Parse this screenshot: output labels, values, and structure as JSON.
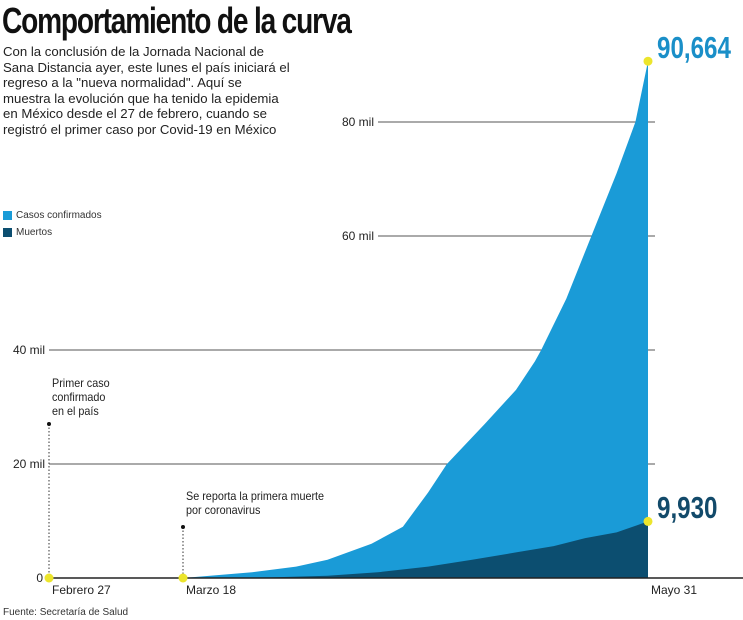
{
  "title": "Comportamiento de la curva",
  "intro": "Con la conclusión de la Jornada Nacional de Sana Distancia ayer, este lunes el país iniciará el regreso a la \"nueva normalidad\".  Aquí se muestra la evolución que ha tenido la epidemia en México desde el 27 de febrero, cuando se registró el primer caso por Covid-19 en México",
  "source": "Fuente: Secretaría de Salud",
  "colors": {
    "cases": "#1a9bd7",
    "deaths": "#0c4e70",
    "marker": "#ece52c",
    "cases_label": "#1a8fc8",
    "deaths_label": "#124a6a"
  },
  "chart_data": {
    "type": "area",
    "title": "Comportamiento de la curva",
    "xlabel": "",
    "ylabel": "",
    "ylim": [
      0,
      90664
    ],
    "grid": true,
    "legend": "left",
    "y_ticks": [
      {
        "value": 0,
        "label": "0"
      },
      {
        "value": 20000,
        "label": "20 mil"
      },
      {
        "value": 40000,
        "label": "40 mil"
      },
      {
        "value": 60000,
        "label": "60 mil"
      },
      {
        "value": 80000,
        "label": "80 mil"
      }
    ],
    "x_ticks": [
      {
        "date": "02-27",
        "label": "Febrero 27"
      },
      {
        "date": "03-18",
        "label": "Marzo 18"
      },
      {
        "date": "05-31",
        "label": "Mayo 31"
      }
    ],
    "series": [
      {
        "name": "Casos confirmados",
        "points": [
          [
            "03-18",
            0
          ],
          [
            "03-29",
            1000
          ],
          [
            "04-05",
            2000
          ],
          [
            "04-10",
            3200
          ],
          [
            "04-17",
            6000
          ],
          [
            "04-22",
            9000
          ],
          [
            "04-26",
            15000
          ],
          [
            "04-29",
            20000
          ],
          [
            "05-05",
            27000
          ],
          [
            "05-10",
            33000
          ],
          [
            "05-13",
            38000
          ],
          [
            "05-14",
            40000
          ],
          [
            "05-18",
            49000
          ],
          [
            "05-22",
            60000
          ],
          [
            "05-26",
            71000
          ],
          [
            "05-29",
            80000
          ],
          [
            "05-31",
            90664
          ]
        ]
      },
      {
        "name": "Muertos",
        "points": [
          [
            "03-18",
            0
          ],
          [
            "04-01",
            100
          ],
          [
            "04-10",
            400
          ],
          [
            "04-18",
            1000
          ],
          [
            "04-26",
            2000
          ],
          [
            "05-03",
            3200
          ],
          [
            "05-10",
            4500
          ],
          [
            "05-16",
            5600
          ],
          [
            "05-21",
            7000
          ],
          [
            "05-26",
            8000
          ],
          [
            "05-31",
            9930
          ]
        ]
      }
    ],
    "annotations": [
      {
        "date": "02-27",
        "text": "Primer caso confirmado en el país"
      },
      {
        "date": "03-18",
        "text": "Se reporta la primera muerte por coronavirus"
      }
    ],
    "end_labels": {
      "cases": "90,664",
      "deaths": "9,930"
    }
  }
}
